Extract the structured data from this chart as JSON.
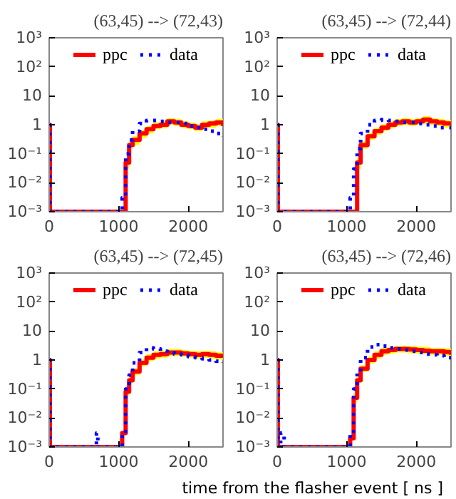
{
  "chart_data": [
    {
      "type": "step",
      "title": "(63,45) --> (72,43)",
      "log": "y",
      "legend": "top",
      "xlim": [
        0,
        2500
      ],
      "xticks": [
        0,
        1000,
        2000
      ],
      "ylim": [
        0.001,
        1000
      ],
      "yticks": [
        {
          "value": 0.001,
          "label": "10⁻³"
        },
        {
          "value": 0.01,
          "label": "10⁻²"
        },
        {
          "value": 0.1,
          "label": "10⁻¹"
        },
        1,
        10,
        {
          "value": 100,
          "label": "10²"
        },
        {
          "value": 1000,
          "label": "10³"
        }
      ],
      "tick_labels": "xy",
      "x": [
        0,
        10,
        1050,
        1100,
        1150,
        1200,
        1300,
        1400,
        1500,
        1600,
        1700,
        1800,
        1900,
        2000,
        2100,
        2200,
        2300,
        2400,
        2500
      ],
      "series": [
        {
          "name": "ppc",
          "color": "#ff0000",
          "line_style": "solid",
          "values": [
            1,
            0.001,
            0.001,
            0.05,
            0.2,
            0.3,
            0.5,
            0.7,
            0.9,
            1.0,
            1.3,
            1.2,
            1.0,
            0.9,
            0.8,
            1.0,
            1.1,
            1.2,
            0.9
          ],
          "lower": [
            null,
            null,
            null,
            0.03,
            0.15,
            0.2,
            0.35,
            0.5,
            0.7,
            0.75,
            1.0,
            0.9,
            0.75,
            0.7,
            0.6,
            0.75,
            0.8,
            0.9,
            0.7
          ],
          "upper": [
            null,
            null,
            null,
            0.07,
            0.27,
            0.4,
            0.65,
            0.9,
            1.2,
            1.3,
            1.7,
            1.6,
            1.3,
            1.2,
            1.05,
            1.3,
            1.4,
            1.6,
            1.2
          ]
        },
        {
          "name": "data",
          "color": "#0000ff",
          "line_style": "dotted",
          "values": [
            1,
            0.001,
            0.003,
            0.1,
            0.3,
            0.6,
            1.1,
            1.4,
            1.4,
            1.3,
            1.2,
            1.2,
            1.1,
            0.9,
            0.8,
            0.7,
            0.6,
            0.5,
            0.4
          ]
        }
      ]
    },
    {
      "type": "step",
      "title": "(63,45) --> (72,44)",
      "log": "y",
      "legend": "top",
      "xlim": [
        0,
        2500
      ],
      "xticks": [
        0,
        1000,
        2000
      ],
      "ylim": [
        0.001,
        1000
      ],
      "yticks": [
        {
          "value": 0.001,
          "label": "10⁻³"
        },
        {
          "value": 0.01,
          "label": "10⁻²"
        },
        {
          "value": 0.1,
          "label": "10⁻¹"
        },
        1,
        10,
        {
          "value": 100,
          "label": "10²"
        },
        {
          "value": 1000,
          "label": "10³"
        }
      ],
      "tick_labels": "xy",
      "x": [
        0,
        10,
        1050,
        1100,
        1150,
        1200,
        1300,
        1400,
        1500,
        1600,
        1700,
        1800,
        1900,
        2000,
        2100,
        2200,
        2300,
        2400,
        2500
      ],
      "series": [
        {
          "name": "ppc",
          "color": "#ff0000",
          "line_style": "solid",
          "values": [
            1,
            0.001,
            0.001,
            0.001,
            0.05,
            0.2,
            0.4,
            0.6,
            0.8,
            1.0,
            1.2,
            1.3,
            1.2,
            1.3,
            1.5,
            1.3,
            1.2,
            1.1,
            1.0
          ],
          "lower": [
            null,
            null,
            null,
            null,
            0.03,
            0.15,
            0.3,
            0.45,
            0.6,
            0.75,
            0.9,
            1.0,
            0.9,
            1.0,
            1.1,
            1.0,
            0.9,
            0.8,
            0.75
          ],
          "upper": [
            null,
            null,
            null,
            null,
            0.07,
            0.27,
            0.52,
            0.8,
            1.05,
            1.3,
            1.6,
            1.7,
            1.6,
            1.7,
            2.0,
            1.7,
            1.6,
            1.45,
            1.3
          ]
        },
        {
          "name": "data",
          "color": "#0000ff",
          "line_style": "dotted",
          "values": [
            1,
            0.001,
            0.003,
            0.03,
            0.15,
            0.5,
            1.0,
            1.4,
            1.5,
            1.4,
            1.3,
            1.2,
            1.2,
            1.1,
            1.0,
            0.9,
            0.8,
            0.8,
            0.7
          ]
        }
      ]
    },
    {
      "type": "step",
      "title": "(63,45) --> (72,45)",
      "log": "y",
      "legend": "top",
      "xlim": [
        0,
        2500
      ],
      "xticks": [
        0,
        1000,
        2000
      ],
      "ylim": [
        0.001,
        1000
      ],
      "yticks": [
        {
          "value": 0.001,
          "label": "10⁻³"
        },
        {
          "value": 0.01,
          "label": "10⁻²"
        },
        {
          "value": 0.1,
          "label": "10⁻¹"
        },
        1,
        10,
        {
          "value": 100,
          "label": "10²"
        },
        {
          "value": 1000,
          "label": "10³"
        }
      ],
      "tick_labels": "xy",
      "x": [
        0,
        10,
        1050,
        1100,
        1150,
        1200,
        1300,
        1400,
        1500,
        1600,
        1700,
        1800,
        1900,
        2000,
        2100,
        2200,
        2300,
        2400,
        2500
      ],
      "series": [
        {
          "name": "ppc",
          "color": "#ff0000",
          "line_style": "solid",
          "values": [
            1,
            0.001,
            0.003,
            0.08,
            0.2,
            0.4,
            0.8,
            1.2,
            1.5,
            1.6,
            1.8,
            1.8,
            1.7,
            1.6,
            1.5,
            1.6,
            1.5,
            1.4,
            1.3
          ],
          "lower": [
            null,
            null,
            null,
            0.06,
            0.15,
            0.3,
            0.6,
            0.9,
            1.1,
            1.2,
            1.35,
            1.35,
            1.3,
            1.2,
            1.1,
            1.2,
            1.1,
            1.05,
            1.0
          ],
          "upper": [
            null,
            null,
            null,
            0.1,
            0.27,
            0.52,
            1.05,
            1.6,
            2.0,
            2.1,
            2.4,
            2.4,
            2.2,
            2.1,
            2.0,
            2.1,
            2.0,
            1.85,
            1.7
          ]
        },
        {
          "name": "data",
          "color": "#0000ff",
          "line_style": "dotted",
          "x": [
            0,
            10,
            680,
            700,
            1050,
            1100,
            1150,
            1200,
            1300,
            1400,
            1500,
            1600,
            1700,
            1800,
            1900,
            2000,
            2100,
            2200,
            2300,
            2400,
            2500
          ],
          "values": [
            1,
            0.001,
            0.003,
            0.001,
            0.003,
            0.1,
            0.3,
            0.8,
            1.8,
            2.6,
            2.4,
            2.0,
            1.8,
            1.6,
            1.5,
            1.3,
            1.2,
            1.1,
            1.0,
            0.9,
            0.8
          ]
        }
      ]
    },
    {
      "type": "step",
      "title": "(63,45) --> (72,46)",
      "xlabel": "time from the flasher event [ ns ]",
      "log": "y",
      "legend": "top",
      "xlim": [
        0,
        2500
      ],
      "xticks": [
        0,
        1000,
        2000
      ],
      "ylim": [
        0.001,
        1000
      ],
      "yticks": [
        {
          "value": 0.001,
          "label": "10⁻³"
        },
        {
          "value": 0.01,
          "label": "10⁻²"
        },
        {
          "value": 0.1,
          "label": "10⁻¹"
        },
        1,
        10,
        {
          "value": 100,
          "label": "10²"
        },
        {
          "value": 1000,
          "label": "10³"
        }
      ],
      "tick_labels": "xy",
      "x": [
        0,
        10,
        1050,
        1100,
        1150,
        1200,
        1300,
        1400,
        1500,
        1600,
        1700,
        1800,
        1900,
        2000,
        2100,
        2200,
        2300,
        2400,
        2500
      ],
      "series": [
        {
          "name": "ppc",
          "color": "#ff0000",
          "line_style": "solid",
          "values": [
            1,
            0.001,
            0.002,
            0.05,
            0.2,
            0.5,
            1.0,
            1.5,
            2.0,
            2.2,
            2.4,
            2.4,
            2.3,
            2.2,
            2.1,
            2.0,
            2.0,
            1.9,
            1.5
          ],
          "lower": [
            null,
            null,
            null,
            0.035,
            0.15,
            0.38,
            0.75,
            1.1,
            1.5,
            1.65,
            1.8,
            1.8,
            1.7,
            1.65,
            1.6,
            1.5,
            1.5,
            1.4,
            1.1
          ],
          "upper": [
            null,
            null,
            null,
            0.07,
            0.27,
            0.65,
            1.3,
            2.0,
            2.6,
            2.9,
            3.1,
            3.1,
            3.0,
            2.9,
            2.8,
            2.6,
            2.6,
            2.5,
            2.0
          ]
        },
        {
          "name": "data",
          "color": "#0000ff",
          "line_style": "dotted",
          "x": [
            0,
            10,
            50,
            100,
            1050,
            1100,
            1150,
            1200,
            1300,
            1400,
            1500,
            1600,
            1700,
            1800,
            1900,
            2000,
            2100,
            2200,
            2300,
            2400,
            2500
          ],
          "values": [
            1,
            0.001,
            0.003,
            0.001,
            0.003,
            0.1,
            0.4,
            1.2,
            2.8,
            3.4,
            3.0,
            2.6,
            2.4,
            2.2,
            2.0,
            1.8,
            1.6,
            1.5,
            1.4,
            1.2,
            1.0
          ]
        }
      ]
    }
  ]
}
